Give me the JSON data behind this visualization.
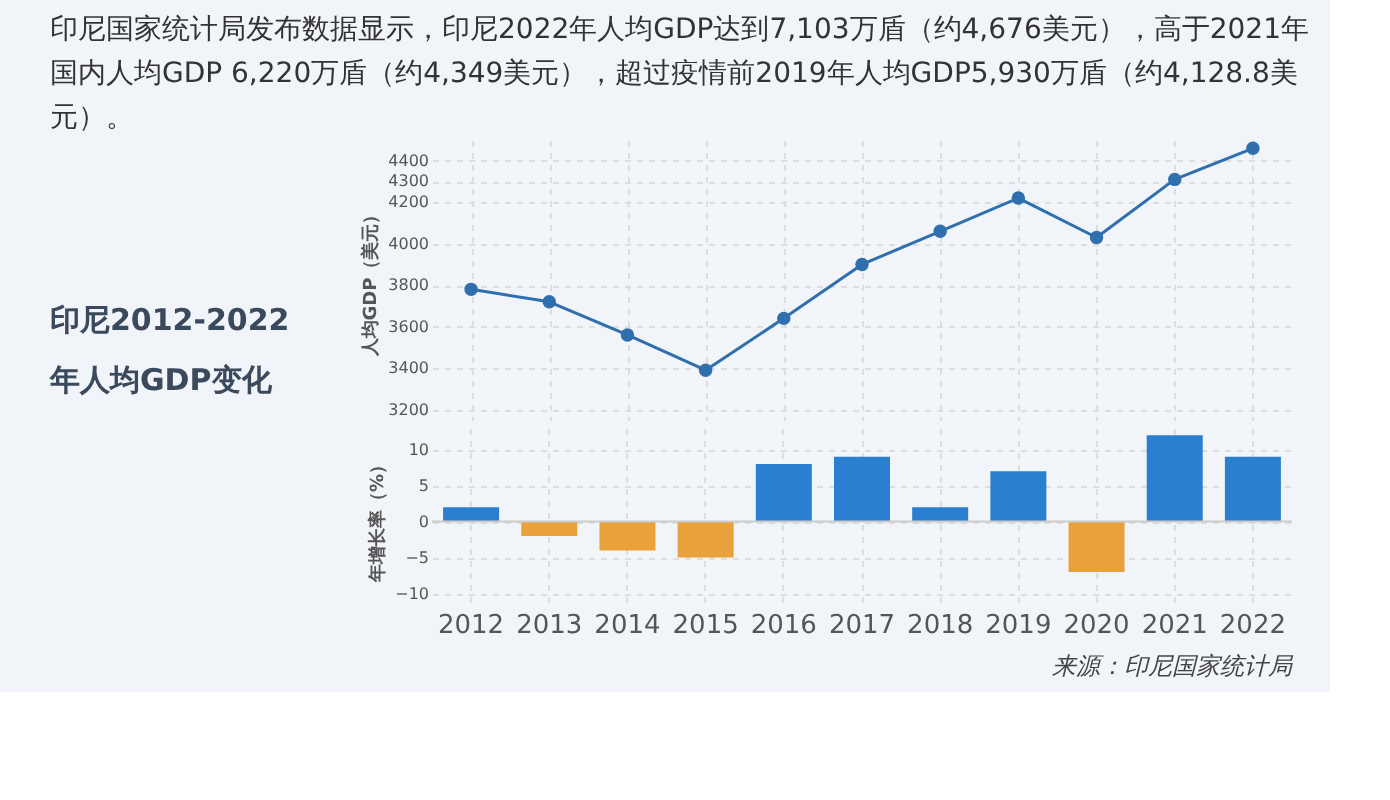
{
  "chart_data": [
    {
      "type": "line",
      "title": "印尼国家统计局发布数据显示，印尼2022年人均GDP达到7,103万盾（约4,676美元），高于2021年国内人均GDP  6,220万盾（约4,349美元），超过疫情前2019年人均GDP5,930万盾（约4,128.8美元）。",
      "annotations": [
        "印尼2012-2022\n年人均GDP变化"
      ],
      "ylabel": "人均GDP（美元）",
      "categories": [
        "2012",
        "2013",
        "2014",
        "2015",
        "2016",
        "2017",
        "2018",
        "2019",
        "2020",
        "2021",
        "2022"
      ],
      "series": [
        {
          "color": "#2f6fae",
          "values": [
            3780,
            3720,
            3560,
            3390,
            3640,
            3900,
            4060,
            4220,
            4030,
            4310,
            4460
          ]
        }
      ],
      "ylim": [
        3150,
        4500
      ],
      "yticks": [
        3200,
        3400,
        3600,
        3800,
        4000,
        4200,
        4300,
        4400
      ],
      "grid": true,
      "marker": "circle",
      "line_style": "solid",
      "tick_labels": "y"
    },
    {
      "type": "bar",
      "ylabel": "年增长率（%）",
      "annotations": [
        "来源：印尼国家统计局"
      ],
      "categories": [
        "2012",
        "2013",
        "2014",
        "2015",
        "2016",
        "2017",
        "2018",
        "2019",
        "2020",
        "2021",
        "2022"
      ],
      "values": [
        2,
        -2,
        -4,
        -5,
        8,
        9,
        2,
        7,
        -7,
        12,
        9
      ],
      "colors": [
        "#2b7fd0",
        "#e9a23b",
        "#e9a23b",
        "#e9a23b",
        "#2b7fd0",
        "#2b7fd0",
        "#2b7fd0",
        "#2b7fd0",
        "#e9a23b",
        "#2b7fd0",
        "#2b7fd0"
      ],
      "ylim": [
        -12,
        13
      ],
      "yticks": [
        -10,
        -5,
        0,
        5,
        10
      ],
      "grid": true
    }
  ]
}
